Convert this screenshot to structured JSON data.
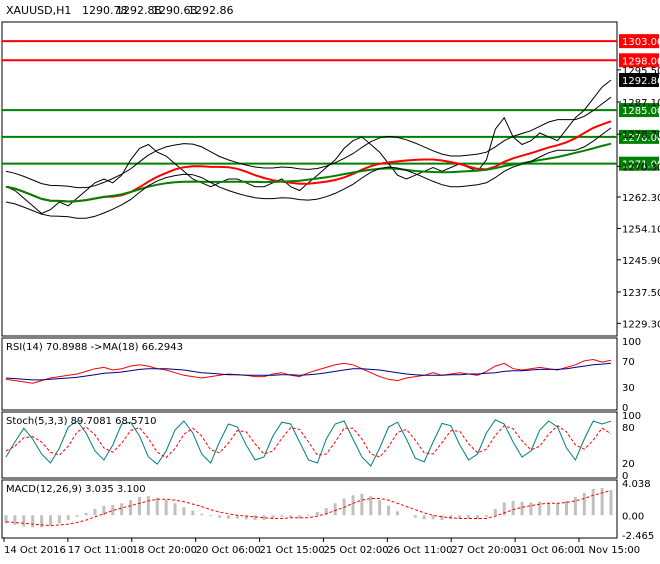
{
  "chart_data": {
    "type": "line",
    "title": "XAUUSD,H1",
    "ohlc": [
      "1290.78",
      "1292.88",
      "1290.63",
      "1292.86"
    ],
    "last_price": "1292.86",
    "price_axis": {
      "ticks": [
        "1295.50",
        "1287.10",
        "1278.70",
        "1270.30",
        "1262.30",
        "1254.10",
        "1245.90",
        "1237.50",
        "1229.30"
      ],
      "ylim": [
        1226,
        1308
      ]
    },
    "x_labels": [
      "14 Oct 2016",
      "17 Oct 11:00",
      "18 Oct 20:00",
      "20 Oct 06:00",
      "21 Oct 15:00",
      "25 Oct 02:00",
      "26 Oct 11:00",
      "27 Oct 20:00",
      "31 Oct 06:00",
      "1 Nov 15:00"
    ],
    "levels": [
      {
        "label": "1303.00",
        "value": 1303.0,
        "color": "#ff0000"
      },
      {
        "label": "1298.00",
        "value": 1298.0,
        "color": "#ff0000"
      },
      {
        "label": "1285.00",
        "value": 1285.0,
        "color": "#008000"
      },
      {
        "label": "1278.00",
        "value": 1278.0,
        "color": "#008000"
      },
      {
        "label": "1271.00",
        "value": 1271.0,
        "color": "#008000"
      }
    ],
    "close_series": [
      1265,
      1264,
      1262,
      1260,
      1258,
      1259,
      1261,
      1260,
      1262,
      1264,
      1266,
      1267,
      1266,
      1268,
      1272,
      1275,
      1276,
      1274,
      1273,
      1271,
      1269,
      1267,
      1266,
      1265,
      1266,
      1267,
      1267,
      1266,
      1265,
      1265,
      1266,
      1267,
      1265,
      1264,
      1266,
      1268,
      1270,
      1272,
      1275,
      1277,
      1278,
      1276,
      1274,
      1271,
      1268,
      1267,
      1268,
      1269,
      1270,
      1269,
      1270,
      1271,
      1270,
      1269,
      1272,
      1280,
      1283,
      1278,
      1276,
      1277,
      1279,
      1278,
      1277,
      1280,
      1283,
      1285,
      1288,
      1291,
      1292.86
    ],
    "indicators": [
      {
        "name": "RSI(14) 70.8988 ->MA(18) 66.2943",
        "ticks": [
          "100",
          "70",
          "30",
          "0"
        ],
        "ylim": [
          0,
          100
        ],
        "series": [
          {
            "name": "RSI",
            "color": "#ff0000",
            "values": [
              42,
              40,
              38,
              36,
              40,
              44,
              46,
              48,
              50,
              54,
              58,
              60,
              56,
              58,
              62,
              64,
              62,
              58,
              56,
              52,
              48,
              46,
              44,
              46,
              48,
              50,
              49,
              48,
              46,
              46,
              50,
              52,
              48,
              46,
              52,
              56,
              60,
              64,
              66,
              64,
              58,
              52,
              46,
              42,
              40,
              44,
              46,
              48,
              52,
              48,
              50,
              52,
              50,
              48,
              54,
              62,
              66,
              58,
              56,
              58,
              60,
              58,
              56,
              60,
              64,
              70,
              72,
              68,
              70.9
            ]
          },
          {
            "name": "MA(18)",
            "color": "#000080",
            "values": [
              44,
              43,
              42,
              41,
              41,
              42,
              43,
              44,
              45,
              47,
              49,
              51,
              52,
              53,
              55,
              57,
              58,
              58,
              58,
              57,
              56,
              54,
              52,
              51,
              50,
              49,
              49,
              48,
              48,
              48,
              48,
              49,
              49,
              48,
              49,
              50,
              52,
              54,
              56,
              58,
              58,
              57,
              56,
              54,
              52,
              50,
              49,
              48,
              48,
              48,
              49,
              49,
              50,
              50,
              51,
              52,
              54,
              55,
              55,
              56,
              57,
              57,
              57,
              58,
              60,
              62,
              64,
              65,
              66.3
            ]
          }
        ]
      },
      {
        "name": "Stoch(5,3,3) 89.7081 68.5710",
        "ticks": [
          "100",
          "80",
          "20",
          "0"
        ],
        "ylim": [
          0,
          100
        ],
        "series": [
          {
            "name": "%K",
            "color": "#008080",
            "values": [
              30,
              55,
              78,
              60,
              35,
              20,
              45,
              80,
              90,
              70,
              40,
              25,
              50,
              85,
              88,
              65,
              30,
              18,
              40,
              75,
              90,
              70,
              35,
              20,
              55,
              85,
              80,
              50,
              25,
              30,
              65,
              88,
              85,
              55,
              25,
              20,
              60,
              85,
              90,
              60,
              30,
              15,
              45,
              80,
              88,
              60,
              28,
              22,
              55,
              86,
              82,
              50,
              25,
              35,
              70,
              92,
              85,
              55,
              30,
              40,
              75,
              90,
              80,
              45,
              25,
              60,
              90,
              85,
              89.7
            ]
          },
          {
            "name": "%D",
            "color": "#ff0000",
            "values": [
              40,
              48,
              62,
              64,
              55,
              38,
              33,
              48,
              72,
              80,
              67,
              45,
              38,
              53,
              74,
              79,
              61,
              38,
              29,
              44,
              68,
              78,
              65,
              42,
              37,
              53,
              74,
              72,
              52,
              35,
              40,
              61,
              79,
              76,
              55,
              33,
              35,
              55,
              78,
              78,
              60,
              35,
              30,
              47,
              71,
              76,
              58,
              37,
              35,
              54,
              74,
              73,
              52,
              37,
              43,
              66,
              82,
              77,
              57,
              42,
              48,
              68,
              82,
              72,
              50,
              43,
              58,
              78,
              68.6
            ]
          }
        ]
      },
      {
        "name": "MACD(12,26,9) 3.035 3.100",
        "ticks": [
          "4.038",
          "0.00",
          "-2.465"
        ],
        "ylim": [
          -2.465,
          4.038
        ],
        "series": [
          {
            "name": "MACD",
            "color": "#c0c0c0",
            "values": [
              -1.0,
              -1.2,
              -1.4,
              -1.5,
              -1.5,
              -1.3,
              -1.0,
              -0.6,
              -0.2,
              0.3,
              0.8,
              1.2,
              1.3,
              1.5,
              1.9,
              2.3,
              2.4,
              2.2,
              1.9,
              1.5,
              1.0,
              0.6,
              0.2,
              -0.1,
              -0.3,
              -0.4,
              -0.4,
              -0.5,
              -0.6,
              -0.6,
              -0.4,
              -0.2,
              -0.3,
              -0.4,
              -0.1,
              0.4,
              0.9,
              1.5,
              2.1,
              2.5,
              2.7,
              2.4,
              1.9,
              1.2,
              0.5,
              0.0,
              -0.3,
              -0.5,
              -0.5,
              -0.6,
              -0.5,
              -0.4,
              -0.4,
              -0.5,
              -0.2,
              0.8,
              1.6,
              1.8,
              1.7,
              1.6,
              1.7,
              1.6,
              1.5,
              1.8,
              2.3,
              2.8,
              3.3,
              3.4,
              3.035
            ]
          },
          {
            "name": "Signal",
            "color": "#ff0000",
            "values": [
              -0.8,
              -0.9,
              -1.0,
              -1.1,
              -1.2,
              -1.3,
              -1.2,
              -1.1,
              -0.9,
              -0.6,
              -0.2,
              0.2,
              0.6,
              0.9,
              1.2,
              1.5,
              1.8,
              2.0,
              2.0,
              1.9,
              1.7,
              1.4,
              1.1,
              0.7,
              0.4,
              0.2,
              0.0,
              -0.1,
              -0.2,
              -0.3,
              -0.4,
              -0.4,
              -0.3,
              -0.3,
              -0.3,
              -0.1,
              0.2,
              0.6,
              1.0,
              1.5,
              1.9,
              2.1,
              2.1,
              1.9,
              1.5,
              1.1,
              0.7,
              0.3,
              0.0,
              -0.2,
              -0.3,
              -0.4,
              -0.4,
              -0.4,
              -0.4,
              -0.1,
              0.3,
              0.7,
              1.0,
              1.2,
              1.4,
              1.5,
              1.5,
              1.6,
              1.8,
              2.1,
              2.5,
              2.8,
              3.1
            ]
          }
        ]
      }
    ],
    "colors": {
      "bull_bear": "#000000",
      "ma_fast": "#ff0000",
      "ma_slow": "#008000",
      "bands": "#000000",
      "grid": "#c0c0c0"
    }
  }
}
